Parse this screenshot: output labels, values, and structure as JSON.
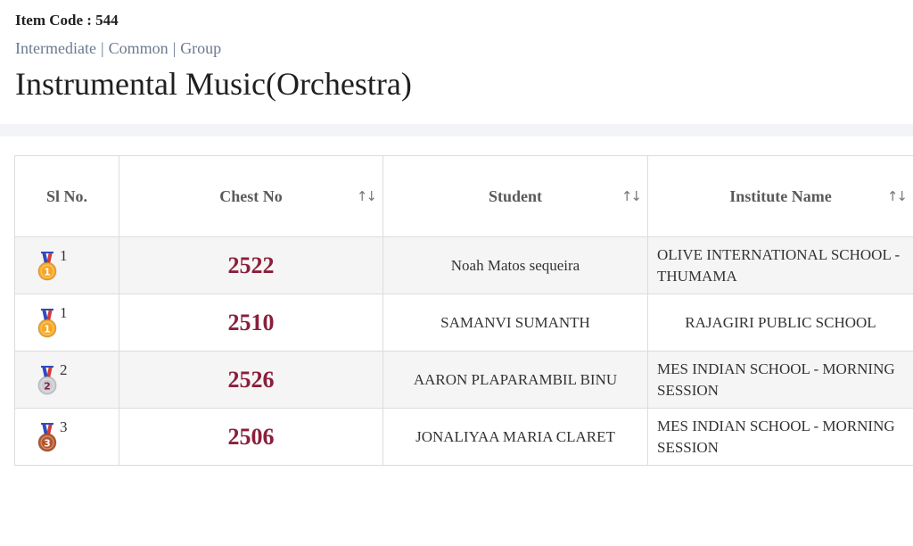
{
  "header": {
    "item_code": "Item Code : 544",
    "breadcrumb": [
      "Intermediate",
      "Common",
      "Group"
    ],
    "breadcrumb_separator": "|",
    "title": "Instrumental Music(Orchestra)"
  },
  "table": {
    "columns": [
      {
        "label": "Sl No.",
        "sortable": false
      },
      {
        "label": "Chest No",
        "sortable": true
      },
      {
        "label": "Student",
        "sortable": true
      },
      {
        "label": "Institute Name",
        "sortable": true
      }
    ],
    "sort_icon": "↑↓",
    "rows": [
      {
        "medal": "gold",
        "medal_icon": "gold-medal-icon",
        "sl": "1",
        "chest_no": "2522",
        "student": "Noah Matos sequeira",
        "institute": "OLIVE INTERNATIONAL SCHOOL - THUMAMA"
      },
      {
        "medal": "gold",
        "medal_icon": "gold-medal-icon",
        "sl": "1",
        "chest_no": "2510",
        "student": "SAMANVI SUMANTH",
        "institute": "RAJAGIRI PUBLIC SCHOOL"
      },
      {
        "medal": "silver",
        "medal_icon": "silver-medal-icon",
        "sl": "2",
        "chest_no": "2526",
        "student": "AARON PLAPARAMBIL BINU",
        "institute": "MES INDIAN SCHOOL - MORNING SESSION"
      },
      {
        "medal": "bronze",
        "medal_icon": "bronze-medal-icon",
        "sl": "3",
        "chest_no": "2506",
        "student": "JONALIYAA MARIA CLARET",
        "institute": "MES INDIAN SCHOOL - MORNING SESSION"
      }
    ]
  },
  "colors": {
    "chest_no": "#8a1f3c",
    "breadcrumb": "#6b7a90",
    "gold": "#f5a623",
    "silver": "#c9ccd1",
    "bronze": "#b5562b",
    "ribbon_blue": "#2f4bbf",
    "ribbon_red": "#d23b3b"
  }
}
